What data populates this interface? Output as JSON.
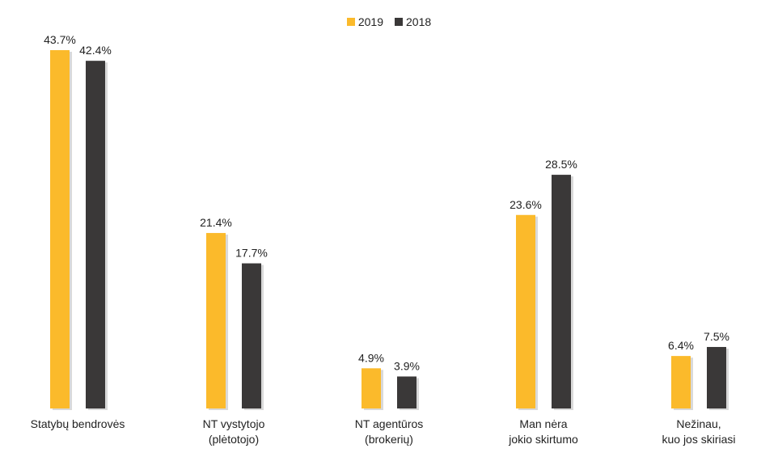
{
  "chart_data": {
    "type": "bar",
    "categories": [
      "Statybų bendrovės",
      "NT vystytojo\n(plėtotojo)",
      "NT agentūros\n(brokerių)",
      "Man nėra\njokio skirtumo",
      "Nežinau,\nkuo jos skiriasi"
    ],
    "series": [
      {
        "name": "2019",
        "color": "#FBBA2B",
        "values": [
          43.7,
          21.4,
          4.9,
          23.6,
          6.4
        ],
        "labels": [
          "43.7%",
          "21.4%",
          "4.9%",
          "23.6%",
          "6.4%"
        ]
      },
      {
        "name": "2018",
        "color": "#3A3838",
        "values": [
          42.4,
          17.7,
          3.9,
          28.5,
          7.5
        ],
        "labels": [
          "42.4%",
          "17.7%",
          "3.9%",
          "28.5%",
          "7.5%"
        ]
      }
    ],
    "ylim": [
      0,
      45
    ],
    "grid": false,
    "legend": "top-center"
  }
}
